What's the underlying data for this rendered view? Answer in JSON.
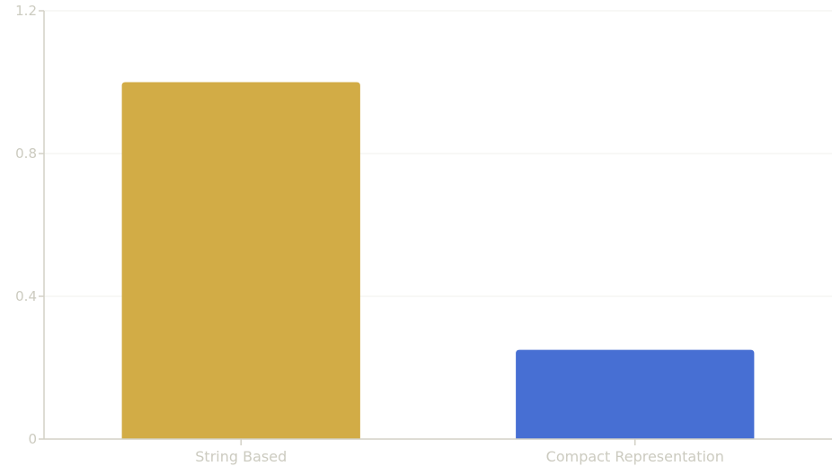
{
  "chart_data": {
    "type": "bar",
    "categories": [
      "String Based",
      "Compact Representation"
    ],
    "values": [
      1.0,
      0.25
    ],
    "ylim": [
      0,
      1.2
    ],
    "yticks": [
      {
        "value": 0,
        "label": "0"
      },
      {
        "value": 0.4,
        "label": "0.4"
      },
      {
        "value": 0.8,
        "label": "0.8"
      },
      {
        "value": 1.2,
        "label": "1.2"
      }
    ],
    "title": "",
    "xlabel": "",
    "ylabel": "",
    "grid": true,
    "legend": "none"
  },
  "colors": {
    "bars": [
      "#d2ac46",
      "#476fd3"
    ],
    "axis": "#d3d1c6",
    "grid": "#f1f1ee",
    "tick_text": "#cccbc0"
  }
}
